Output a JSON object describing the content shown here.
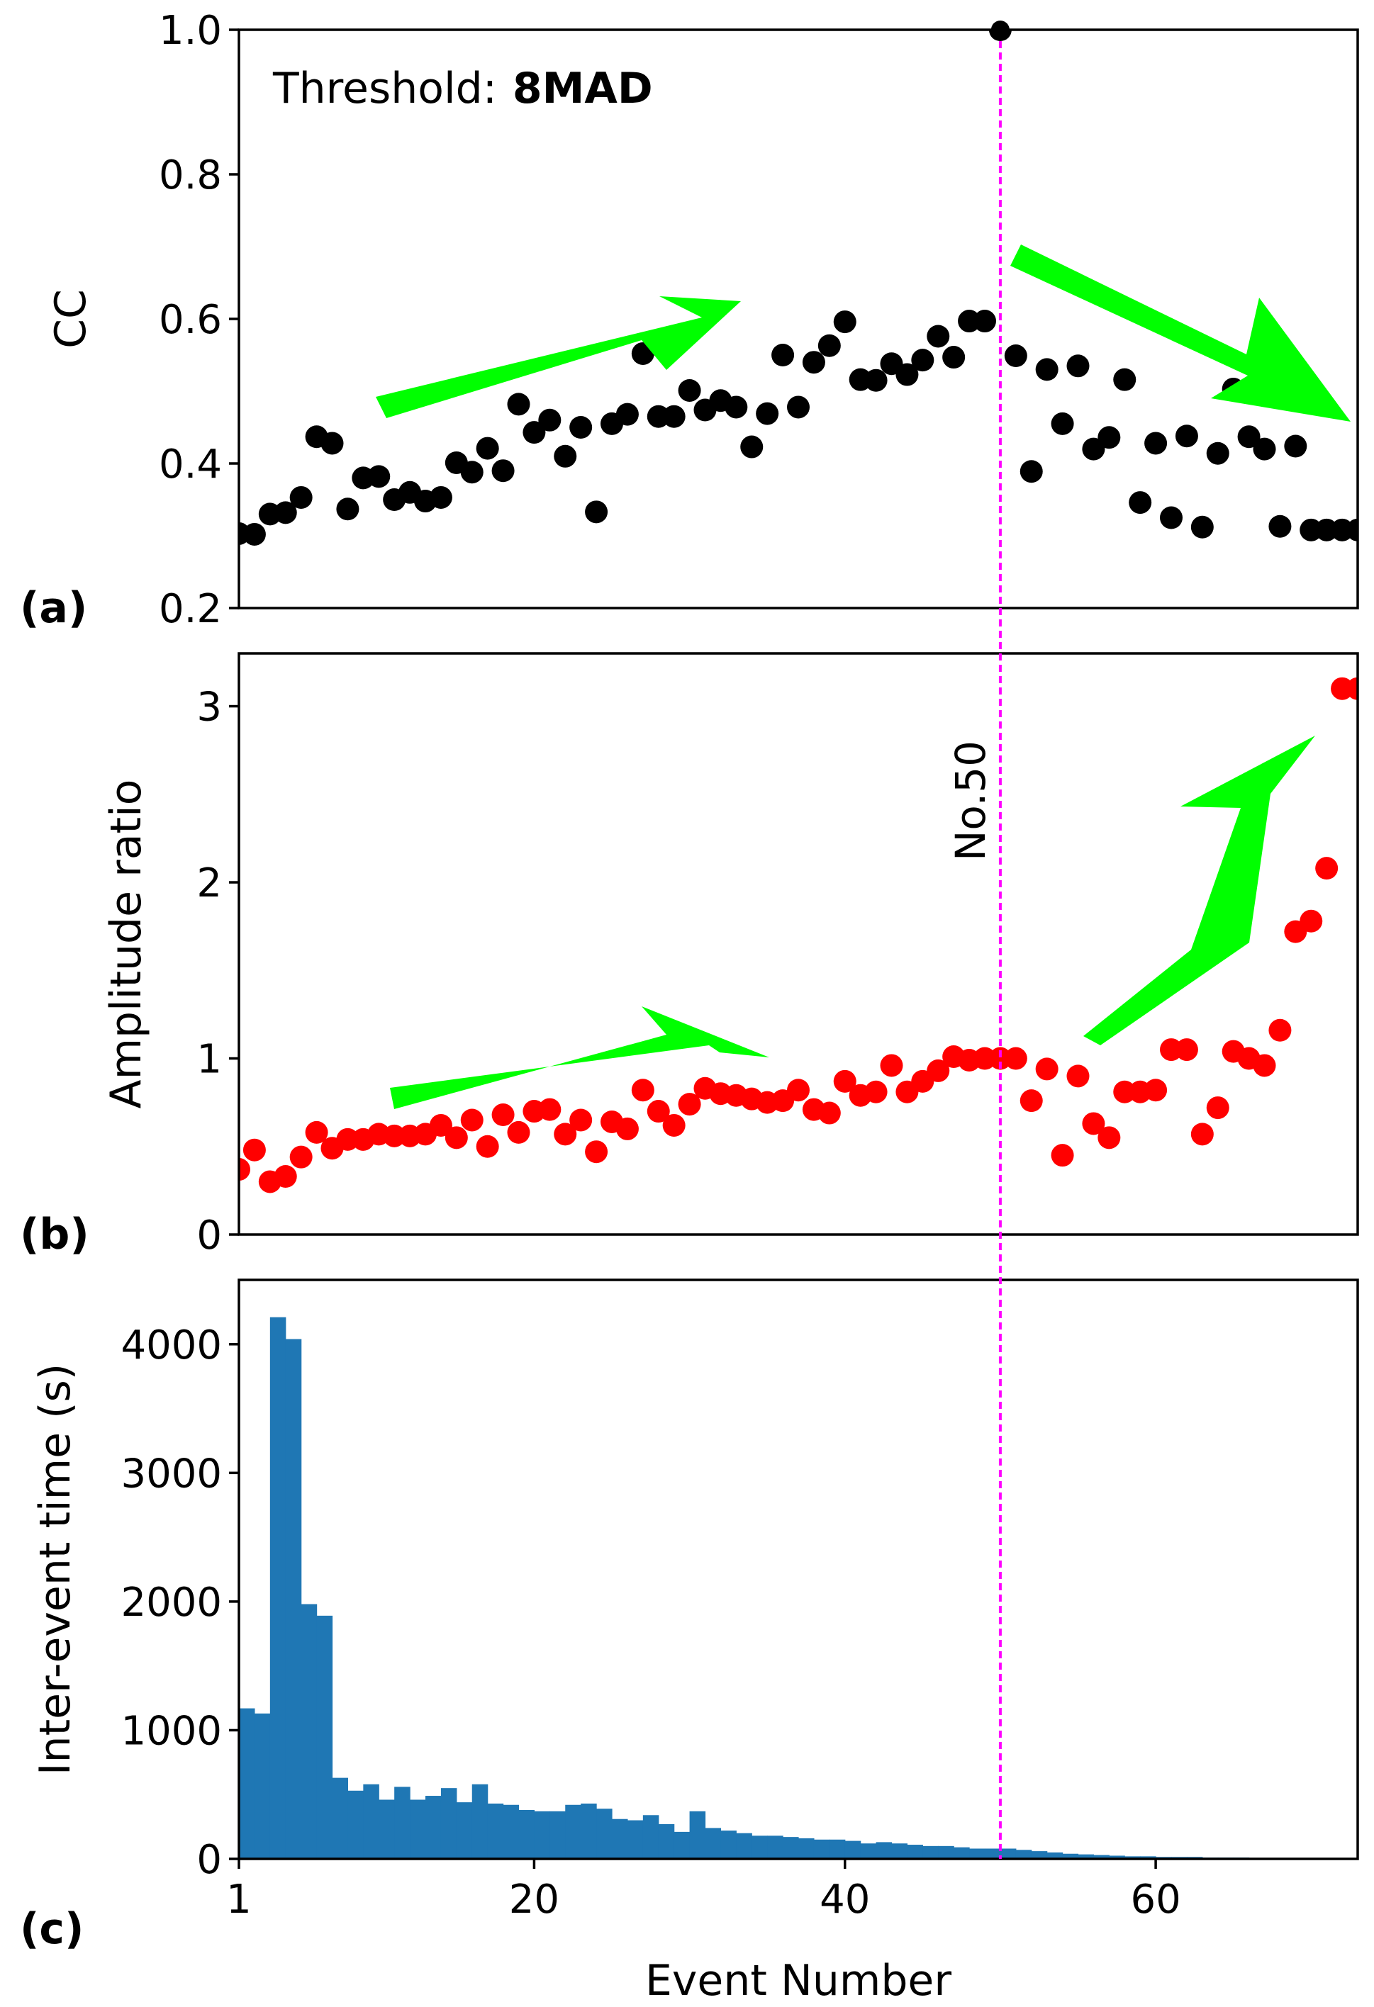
{
  "chart_data": [
    {
      "id": "a",
      "type": "scatter",
      "panel_label": "(a)",
      "ylabel": "CC",
      "xlim": [
        1,
        73
      ],
      "ylim": [
        0.2,
        1.0
      ],
      "yticks": [
        0.2,
        0.4,
        0.6,
        0.8,
        1.0
      ],
      "ytick_labels": [
        "0.2",
        "0.4",
        "0.6",
        "0.8",
        "1.0"
      ],
      "annotation_prefix": "Threshold:",
      "annotation_value": "8MAD",
      "marker_color": "#000000",
      "x": [
        1,
        2,
        3,
        4,
        5,
        6,
        7,
        8,
        9,
        10,
        11,
        12,
        13,
        14,
        15,
        16,
        17,
        18,
        19,
        20,
        21,
        22,
        23,
        24,
        25,
        26,
        27,
        28,
        29,
        30,
        31,
        32,
        33,
        34,
        35,
        36,
        37,
        38,
        39,
        40,
        41,
        42,
        43,
        44,
        45,
        46,
        47,
        48,
        49,
        50,
        51,
        52,
        53,
        54,
        55,
        56,
        57,
        58,
        59,
        60,
        61,
        62,
        63,
        64,
        65,
        66,
        67,
        68,
        69,
        70,
        71,
        72,
        73
      ],
      "y": [
        0.303,
        0.302,
        0.33,
        0.332,
        0.353,
        0.437,
        0.428,
        0.337,
        0.38,
        0.382,
        0.35,
        0.36,
        0.348,
        0.353,
        0.401,
        0.388,
        0.421,
        0.39,
        0.482,
        0.443,
        0.46,
        0.41,
        0.45,
        0.333,
        0.455,
        0.468,
        0.552,
        0.465,
        0.465,
        0.501,
        0.474,
        0.487,
        0.478,
        0.423,
        0.469,
        0.55,
        0.478,
        0.54,
        0.563,
        0.596,
        0.516,
        0.515,
        0.538,
        0.523,
        0.543,
        0.576,
        0.547,
        0.597,
        0.597,
        1.0,
        0.549,
        0.389,
        0.53,
        0.455,
        0.535,
        0.42,
        0.436,
        0.516,
        0.346,
        0.428,
        0.325,
        0.438,
        0.312,
        0.414,
        0.503,
        0.437,
        0.42,
        0.313,
        0.424,
        0.308,
        0.308,
        0.308,
        0.308
      ],
      "trend_arrows": [
        "increasing before No.50",
        "decreasing after No.50"
      ]
    },
    {
      "id": "b",
      "type": "scatter",
      "panel_label": "(b)",
      "ylabel": "Amplitude ratio",
      "xlim": [
        1,
        73
      ],
      "ylim": [
        0,
        3.3
      ],
      "yticks": [
        0,
        1,
        2,
        3
      ],
      "ytick_labels": [
        "0",
        "1",
        "2",
        "3"
      ],
      "marker_color": "#ff0000",
      "x": [
        1,
        2,
        3,
        4,
        5,
        6,
        7,
        8,
        9,
        10,
        11,
        12,
        13,
        14,
        15,
        16,
        17,
        18,
        19,
        20,
        21,
        22,
        23,
        24,
        25,
        26,
        27,
        28,
        29,
        30,
        31,
        32,
        33,
        34,
        35,
        36,
        37,
        38,
        39,
        40,
        41,
        42,
        43,
        44,
        45,
        46,
        47,
        48,
        49,
        50,
        51,
        52,
        53,
        54,
        55,
        56,
        57,
        58,
        59,
        60,
        61,
        62,
        63,
        64,
        65,
        66,
        67,
        68,
        69,
        70,
        71,
        72,
        73
      ],
      "y": [
        0.37,
        0.48,
        0.3,
        0.33,
        0.44,
        0.58,
        0.49,
        0.54,
        0.54,
        0.57,
        0.56,
        0.56,
        0.57,
        0.62,
        0.55,
        0.65,
        0.5,
        0.68,
        0.58,
        0.7,
        0.71,
        0.57,
        0.65,
        0.47,
        0.64,
        0.6,
        0.82,
        0.7,
        0.62,
        0.74,
        0.83,
        0.8,
        0.79,
        0.77,
        0.75,
        0.76,
        0.82,
        0.71,
        0.69,
        0.87,
        0.79,
        0.81,
        0.96,
        0.81,
        0.87,
        0.93,
        1.01,
        0.99,
        1.0,
        1.0,
        1.0,
        0.76,
        0.94,
        0.45,
        0.9,
        0.63,
        0.55,
        0.81,
        0.81,
        0.82,
        1.05,
        1.05,
        0.57,
        0.72,
        1.04,
        1.0,
        0.96,
        1.16,
        1.72,
        1.78,
        2.08,
        3.1,
        3.1
      ],
      "vline_label": "No.50",
      "trend_arrows": [
        "slow increase before No.50",
        "sharp increase after No.50"
      ]
    },
    {
      "id": "c",
      "type": "bar",
      "panel_label": "(c)",
      "xlabel": "Event Number",
      "ylabel": "Inter-event time (s)",
      "xlim": [
        1,
        73
      ],
      "ylim": [
        0,
        4500
      ],
      "yticks": [
        0,
        1000,
        2000,
        3000,
        4000
      ],
      "ytick_labels": [
        "0",
        "1000",
        "2000",
        "3000",
        "4000"
      ],
      "xticks": [
        1,
        20,
        40,
        60
      ],
      "xtick_labels": [
        "1",
        "20",
        "40",
        "60"
      ],
      "bar_color": "#1f77b4",
      "x": [
        1,
        2,
        3,
        4,
        5,
        6,
        7,
        8,
        9,
        10,
        11,
        12,
        13,
        14,
        15,
        16,
        17,
        18,
        19,
        20,
        21,
        22,
        23,
        24,
        25,
        26,
        27,
        28,
        29,
        30,
        31,
        32,
        33,
        34,
        35,
        36,
        37,
        38,
        39,
        40,
        41,
        42,
        43,
        44,
        45,
        46,
        47,
        48,
        49,
        50,
        51,
        52,
        53,
        54,
        55,
        56,
        57,
        58,
        59,
        60,
        61,
        62,
        63,
        64,
        65,
        66,
        67,
        68,
        69,
        70,
        71,
        72
      ],
      "values": [
        1170,
        1130,
        4210,
        4040,
        1980,
        1890,
        630,
        530,
        580,
        460,
        560,
        460,
        490,
        550,
        440,
        580,
        430,
        420,
        380,
        370,
        370,
        420,
        430,
        390,
        310,
        300,
        340,
        270,
        210,
        370,
        240,
        220,
        200,
        180,
        180,
        170,
        160,
        150,
        150,
        140,
        120,
        130,
        120,
        110,
        100,
        100,
        90,
        80,
        80,
        80,
        70,
        60,
        50,
        40,
        35,
        30,
        25,
        20,
        20,
        15,
        15,
        15,
        10,
        10,
        10,
        8,
        8,
        6,
        5,
        5,
        4,
        4
      ]
    }
  ],
  "reference_line": {
    "x": 50,
    "color": "#ff00ff",
    "style": "dashed"
  },
  "arrow_color": "#00ff00"
}
